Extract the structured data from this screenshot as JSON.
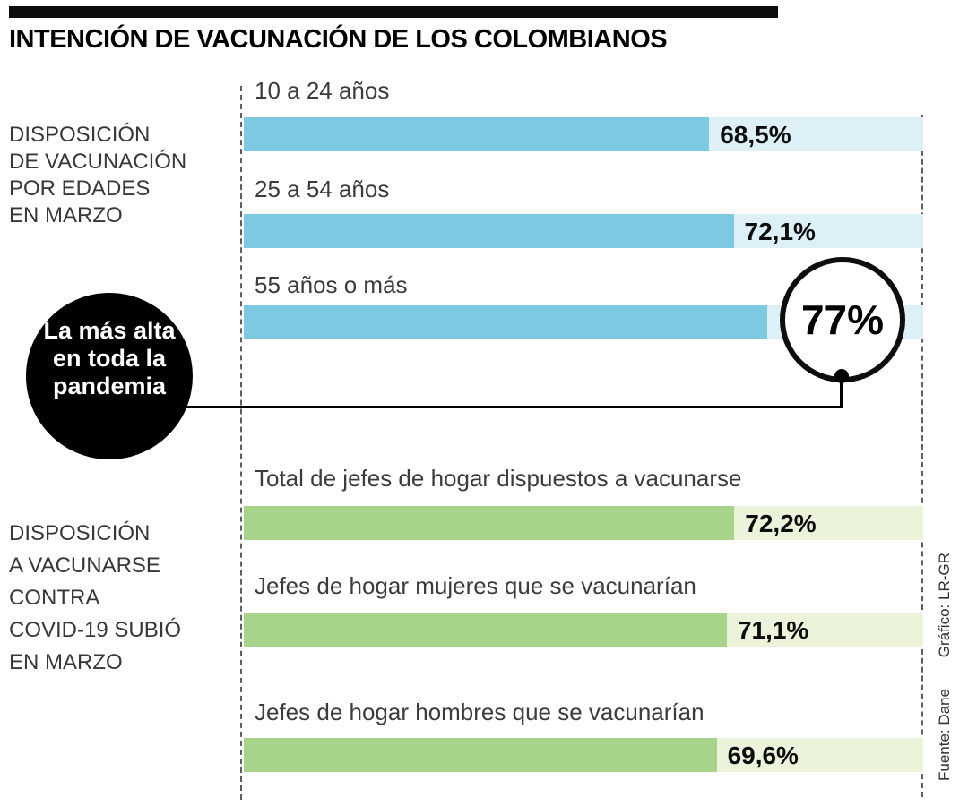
{
  "header": {
    "title": "INTENCIÓN DE VACUNACIÓN DE LOS COLOMBIANOS"
  },
  "sections": [
    {
      "label_lines": [
        "DISPOSICIÓN",
        "DE VACUNACIÓN",
        "POR EDADES",
        "EN MARZO"
      ]
    },
    {
      "label_lines": [
        "DISPOSICIÓN",
        "A VACUNARSE",
        "CONTRA",
        "COVID-19 SUBIÓ",
        "EN MARZO"
      ]
    }
  ],
  "annotation": {
    "lines": [
      "La más alta",
      "en toda la",
      "pandemia"
    ]
  },
  "source": {
    "fuente": "Fuente: Dane",
    "grafico": "Gráfico: LR-GR"
  },
  "colors": {
    "blue_bar": "#7DC9E2",
    "blue_track": "#DDF0F8",
    "green_bar": "#A8D38A",
    "green_track": "#EBF3DB",
    "accent_black": "#000000"
  },
  "chart_data": [
    {
      "type": "bar",
      "orientation": "horizontal",
      "title": "Disposición de vacunación por edades en marzo",
      "categories": [
        "10 a 24 años",
        "25 a 54 años",
        "55 años o más"
      ],
      "values": [
        68.5,
        72.1,
        77
      ],
      "value_labels": [
        "68,5%",
        "72,1%",
        "77%"
      ],
      "xlim": [
        0,
        100
      ],
      "highlight": {
        "category": "55 años o más",
        "value": 77,
        "note": "La más alta en toda la pandemia"
      }
    },
    {
      "type": "bar",
      "orientation": "horizontal",
      "title": "Disposición a vacunarse contra Covid-19 subió en marzo",
      "categories": [
        "Total de jefes de hogar dispuestos a vacunarse",
        "Jefes de hogar mujeres que se vacunarían",
        "Jefes de hogar hombres que se vacunarían"
      ],
      "values": [
        72.2,
        71.1,
        69.6
      ],
      "value_labels": [
        "72,2%",
        "71,1%",
        "69,6%"
      ],
      "xlim": [
        0,
        100
      ]
    }
  ]
}
